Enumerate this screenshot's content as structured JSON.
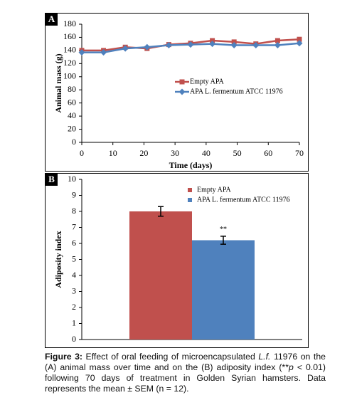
{
  "chart_data": [
    {
      "type": "line",
      "panel": "A",
      "xlabel": "Time (days)",
      "ylabel": "Animal mass (g)",
      "x": [
        0,
        7,
        14,
        21,
        28,
        35,
        42,
        49,
        56,
        63,
        70
      ],
      "series": [
        {
          "name": "Empty APA",
          "color": "#c0504d",
          "marker": "square",
          "values": [
            140,
            140,
            145,
            143,
            149,
            151,
            155,
            153,
            150,
            155,
            157
          ]
        },
        {
          "name": "APA L. fermentum ATCC 11976",
          "color": "#4f81bd",
          "marker": "diamond",
          "values": [
            137,
            137,
            143,
            145,
            148,
            149,
            150,
            148,
            148,
            148,
            151
          ]
        }
      ],
      "xlim": [
        0,
        70
      ],
      "xticks": [
        0,
        10,
        20,
        30,
        40,
        50,
        60,
        70
      ],
      "ylim": [
        0,
        180
      ],
      "yticks": [
        0,
        20,
        40,
        60,
        80,
        100,
        120,
        140,
        160,
        180
      ]
    },
    {
      "type": "bar",
      "panel": "B",
      "ylabel": "Adiposity index",
      "categories": [
        null
      ],
      "series": [
        {
          "name": "Empty APA",
          "color": "#c0504d",
          "values": [
            8.0
          ],
          "errors": [
            0.3
          ]
        },
        {
          "name": "APA L. fermentum ATCC 11976",
          "color": "#4f81bd",
          "values": [
            6.2
          ],
          "errors": [
            0.25
          ],
          "annotation": "**"
        }
      ],
      "ylim": [
        0,
        10
      ],
      "yticks": [
        0,
        1,
        2,
        3,
        4,
        5,
        6,
        7,
        8,
        9,
        10
      ]
    }
  ],
  "caption": {
    "label": "Figure 3:",
    "parts": [
      "Effect of oral feeding of microencapsulated ",
      "L.f.",
      " 11976  on the (A) animal mass over time and on the (B) adiposity index (**",
      "p",
      " < 0.01) following 70 days of treatment in Golden Syrian hamsters. Data represents the mean ± SEM (n = 12)."
    ]
  }
}
